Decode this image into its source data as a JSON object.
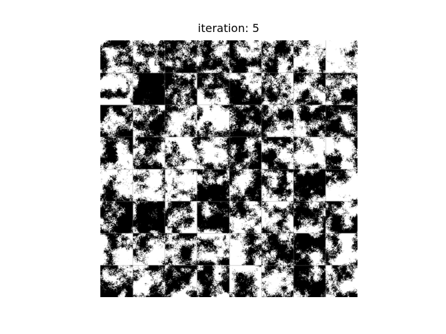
{
  "figure": {
    "title": "iteration: 5",
    "grid": {
      "rows": 8,
      "cols": 8,
      "description_colors": {
        "ink": "#000000",
        "paper": "#ffffff"
      }
    }
  }
}
